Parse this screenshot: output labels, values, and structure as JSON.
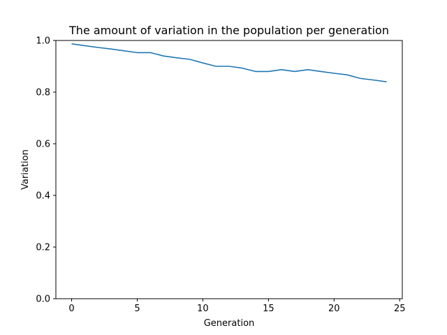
{
  "chart_data": {
    "type": "line",
    "title": "The amount of variation in the population per generation",
    "xlabel": "Generation",
    "ylabel": "Variation",
    "xlim": [
      -1.2,
      25.2
    ],
    "ylim": [
      0.0,
      1.0
    ],
    "xticks": [
      0,
      5,
      10,
      15,
      20,
      25
    ],
    "xtick_labels": [
      "0",
      "5",
      "10",
      "15",
      "20",
      "25"
    ],
    "yticks": [
      0.0,
      0.2,
      0.4,
      0.6,
      0.8,
      1.0
    ],
    "ytick_labels": [
      "0.0",
      "0.2",
      "0.4",
      "0.6",
      "0.8",
      "1.0"
    ],
    "grid": false,
    "series": [
      {
        "color": "#1f77b4",
        "x": [
          0,
          1,
          2,
          3,
          4,
          5,
          6,
          7,
          8,
          9,
          10,
          11,
          12,
          13,
          14,
          15,
          16,
          17,
          18,
          19,
          20,
          21,
          22,
          23,
          24
        ],
        "y": [
          0.987,
          0.98,
          0.973,
          0.967,
          0.96,
          0.953,
          0.953,
          0.94,
          0.933,
          0.927,
          0.913,
          0.9,
          0.9,
          0.893,
          0.88,
          0.88,
          0.887,
          0.88,
          0.887,
          0.88,
          0.873,
          0.867,
          0.853,
          0.847,
          0.84
        ]
      }
    ]
  }
}
